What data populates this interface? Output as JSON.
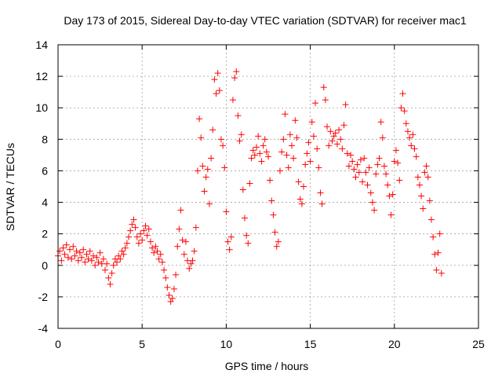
{
  "chart_data": {
    "type": "scatter",
    "title": "Day 173 of 2015, Sidereal Day-to-day VTEC variation (SDTVAR) for receiver mac1",
    "xlabel": "GPS time / hours",
    "ylabel": "SDTVAR / TECUs",
    "xlim": [
      0,
      25
    ],
    "ylim": [
      -4,
      14
    ],
    "xticks": [
      "0",
      "5",
      "10",
      "15",
      "20",
      "25"
    ],
    "yticks": [
      "-4",
      "-2",
      "0",
      "2",
      "4",
      "6",
      "8",
      "10",
      "12",
      "14"
    ],
    "grid": true,
    "marker": "plus",
    "color": "#ff0000",
    "series": [
      {
        "name": "SDTVAR",
        "points": [
          [
            0.0,
            0.6
          ],
          [
            0.1,
            0.9
          ],
          [
            0.2,
            0.3
          ],
          [
            0.3,
            1.1
          ],
          [
            0.4,
            0.7
          ],
          [
            0.5,
            1.3
          ],
          [
            0.6,
            0.5
          ],
          [
            0.7,
            1.0
          ],
          [
            0.8,
            0.4
          ],
          [
            0.9,
            1.2
          ],
          [
            1.0,
            0.6
          ],
          [
            1.1,
            0.9
          ],
          [
            1.2,
            0.3
          ],
          [
            1.3,
            0.8
          ],
          [
            1.4,
            0.5
          ],
          [
            1.5,
            1.0
          ],
          [
            1.6,
            0.2
          ],
          [
            1.7,
            0.7
          ],
          [
            1.8,
            0.4
          ],
          [
            1.9,
            0.9
          ],
          [
            2.0,
            0.3
          ],
          [
            2.1,
            0.6
          ],
          [
            2.2,
            0.0
          ],
          [
            2.3,
            0.5
          ],
          [
            2.4,
            0.2
          ],
          [
            2.5,
            0.8
          ],
          [
            2.6,
            0.1
          ],
          [
            2.7,
            0.4
          ],
          [
            2.8,
            -0.3
          ],
          [
            2.9,
            0.1
          ],
          [
            3.0,
            -0.8
          ],
          [
            3.1,
            -1.2
          ],
          [
            3.2,
            -0.5
          ],
          [
            3.3,
            0.0
          ],
          [
            3.4,
            0.4
          ],
          [
            3.5,
            0.2
          ],
          [
            3.6,
            0.6
          ],
          [
            3.7,
            0.4
          ],
          [
            3.8,
            0.9
          ],
          [
            3.9,
            0.7
          ],
          [
            4.0,
            1.1
          ],
          [
            4.1,
            1.4
          ],
          [
            4.2,
            1.8
          ],
          [
            4.3,
            2.2
          ],
          [
            4.4,
            2.6
          ],
          [
            4.5,
            2.9
          ],
          [
            4.6,
            2.4
          ],
          [
            4.7,
            1.8
          ],
          [
            4.8,
            1.4
          ],
          [
            4.9,
            2.0
          ],
          [
            5.0,
            1.6
          ],
          [
            5.1,
            2.2
          ],
          [
            5.2,
            2.5
          ],
          [
            5.3,
            1.9
          ],
          [
            5.4,
            2.3
          ],
          [
            5.5,
            1.5
          ],
          [
            5.6,
            1.1
          ],
          [
            5.7,
            0.8
          ],
          [
            5.8,
            1.2
          ],
          [
            5.9,
            0.9
          ],
          [
            6.0,
            0.4
          ],
          [
            6.1,
            0.7
          ],
          [
            6.2,
            0.2
          ],
          [
            6.3,
            -0.3
          ],
          [
            6.4,
            -0.8
          ],
          [
            6.5,
            -1.4
          ],
          [
            6.6,
            -1.9
          ],
          [
            6.7,
            -2.3
          ],
          [
            6.8,
            -2.1
          ],
          [
            6.9,
            -1.5
          ],
          [
            7.0,
            -0.6
          ],
          [
            7.1,
            1.2
          ],
          [
            7.2,
            2.3
          ],
          [
            7.3,
            3.5
          ],
          [
            7.4,
            1.6
          ],
          [
            7.5,
            0.7
          ],
          [
            7.6,
            1.5
          ],
          [
            7.7,
            0.3
          ],
          [
            7.8,
            -0.2
          ],
          [
            7.9,
            0.1
          ],
          [
            8.0,
            0.3
          ],
          [
            8.1,
            0.9
          ],
          [
            8.2,
            2.4
          ],
          [
            8.3,
            6.0
          ],
          [
            8.4,
            9.3
          ],
          [
            8.5,
            8.1
          ],
          [
            8.6,
            6.3
          ],
          [
            8.7,
            4.7
          ],
          [
            8.8,
            5.6
          ],
          [
            8.9,
            6.1
          ],
          [
            9.0,
            3.9
          ],
          [
            9.1,
            6.8
          ],
          [
            9.2,
            8.6
          ],
          [
            9.3,
            11.8
          ],
          [
            9.4,
            10.9
          ],
          [
            9.5,
            12.2
          ],
          [
            9.6,
            11.1
          ],
          [
            9.7,
            8.0
          ],
          [
            9.8,
            7.6
          ],
          [
            9.9,
            6.2
          ],
          [
            10.0,
            3.4
          ],
          [
            10.1,
            1.5
          ],
          [
            10.2,
            1.0
          ],
          [
            10.3,
            1.8
          ],
          [
            10.4,
            10.5
          ],
          [
            10.5,
            11.9
          ],
          [
            10.6,
            12.3
          ],
          [
            10.7,
            9.5
          ],
          [
            10.8,
            7.9
          ],
          [
            10.9,
            8.3
          ],
          [
            11.0,
            4.8
          ],
          [
            11.1,
            3.0
          ],
          [
            11.2,
            1.9
          ],
          [
            11.3,
            1.4
          ],
          [
            11.4,
            5.2
          ],
          [
            11.5,
            6.8
          ],
          [
            11.6,
            7.3
          ],
          [
            11.7,
            7.0
          ],
          [
            11.8,
            7.5
          ],
          [
            11.9,
            8.2
          ],
          [
            12.0,
            7.1
          ],
          [
            12.1,
            6.6
          ],
          [
            12.2,
            7.6
          ],
          [
            12.3,
            8.0
          ],
          [
            12.4,
            7.2
          ],
          [
            12.5,
            6.9
          ],
          [
            12.6,
            5.4
          ],
          [
            12.7,
            4.1
          ],
          [
            12.8,
            3.2
          ],
          [
            12.9,
            2.1
          ],
          [
            13.0,
            1.2
          ],
          [
            13.1,
            1.5
          ],
          [
            13.2,
            6.0
          ],
          [
            13.3,
            7.2
          ],
          [
            13.4,
            8.0
          ],
          [
            13.5,
            9.6
          ],
          [
            13.6,
            7.0
          ],
          [
            13.7,
            6.2
          ],
          [
            13.8,
            8.3
          ],
          [
            13.9,
            7.6
          ],
          [
            14.0,
            6.8
          ],
          [
            14.1,
            9.2
          ],
          [
            14.2,
            8.1
          ],
          [
            14.3,
            5.3
          ],
          [
            14.4,
            4.2
          ],
          [
            14.5,
            3.9
          ],
          [
            14.6,
            5.0
          ],
          [
            14.7,
            6.4
          ],
          [
            14.8,
            7.1
          ],
          [
            14.9,
            7.8
          ],
          [
            15.0,
            6.6
          ],
          [
            15.1,
            9.1
          ],
          [
            15.2,
            8.2
          ],
          [
            15.3,
            10.3
          ],
          [
            15.4,
            7.4
          ],
          [
            15.5,
            6.2
          ],
          [
            15.6,
            4.6
          ],
          [
            15.7,
            3.9
          ],
          [
            15.8,
            11.3
          ],
          [
            15.9,
            10.5
          ],
          [
            16.0,
            8.8
          ],
          [
            16.1,
            7.6
          ],
          [
            16.2,
            8.5
          ],
          [
            16.3,
            7.9
          ],
          [
            16.4,
            8.2
          ],
          [
            16.5,
            8.4
          ],
          [
            16.6,
            7.7
          ],
          [
            16.7,
            8.6
          ],
          [
            16.8,
            8.0
          ],
          [
            16.9,
            7.4
          ],
          [
            17.0,
            8.9
          ],
          [
            17.1,
            10.2
          ],
          [
            17.2,
            7.1
          ],
          [
            17.3,
            6.3
          ],
          [
            17.4,
            7.0
          ],
          [
            17.5,
            6.6
          ],
          [
            17.6,
            6.1
          ],
          [
            17.7,
            5.6
          ],
          [
            17.8,
            6.4
          ],
          [
            17.9,
            5.9
          ],
          [
            18.0,
            6.7
          ],
          [
            18.1,
            5.3
          ],
          [
            18.2,
            6.8
          ],
          [
            18.3,
            5.9
          ],
          [
            18.4,
            5.1
          ],
          [
            18.5,
            6.2
          ],
          [
            18.6,
            4.6
          ],
          [
            18.7,
            4.0
          ],
          [
            18.8,
            3.5
          ],
          [
            18.9,
            5.8
          ],
          [
            19.0,
            6.4
          ],
          [
            19.1,
            6.8
          ],
          [
            19.2,
            9.1
          ],
          [
            19.3,
            8.1
          ],
          [
            19.4,
            6.3
          ],
          [
            19.5,
            5.8
          ],
          [
            19.6,
            5.1
          ],
          [
            19.7,
            4.4
          ],
          [
            19.8,
            3.2
          ],
          [
            19.9,
            4.5
          ],
          [
            20.0,
            6.6
          ],
          [
            20.1,
            7.3
          ],
          [
            20.2,
            6.5
          ],
          [
            20.3,
            5.4
          ],
          [
            20.4,
            10.0
          ],
          [
            20.5,
            10.9
          ],
          [
            20.6,
            9.8
          ],
          [
            20.7,
            9.0
          ],
          [
            20.8,
            8.5
          ],
          [
            20.9,
            8.1
          ],
          [
            21.0,
            7.6
          ],
          [
            21.1,
            8.3
          ],
          [
            21.2,
            7.4
          ],
          [
            21.3,
            6.9
          ],
          [
            21.4,
            5.6
          ],
          [
            21.5,
            5.1
          ],
          [
            21.6,
            4.4
          ],
          [
            21.7,
            3.6
          ],
          [
            21.8,
            5.9
          ],
          [
            21.9,
            6.3
          ],
          [
            22.0,
            5.6
          ],
          [
            22.1,
            4.1
          ],
          [
            22.2,
            2.9
          ],
          [
            22.3,
            1.8
          ],
          [
            22.4,
            0.7
          ],
          [
            22.5,
            -0.3
          ],
          [
            22.6,
            0.8
          ],
          [
            22.7,
            2.0
          ],
          [
            22.8,
            -0.5
          ]
        ]
      }
    ]
  }
}
